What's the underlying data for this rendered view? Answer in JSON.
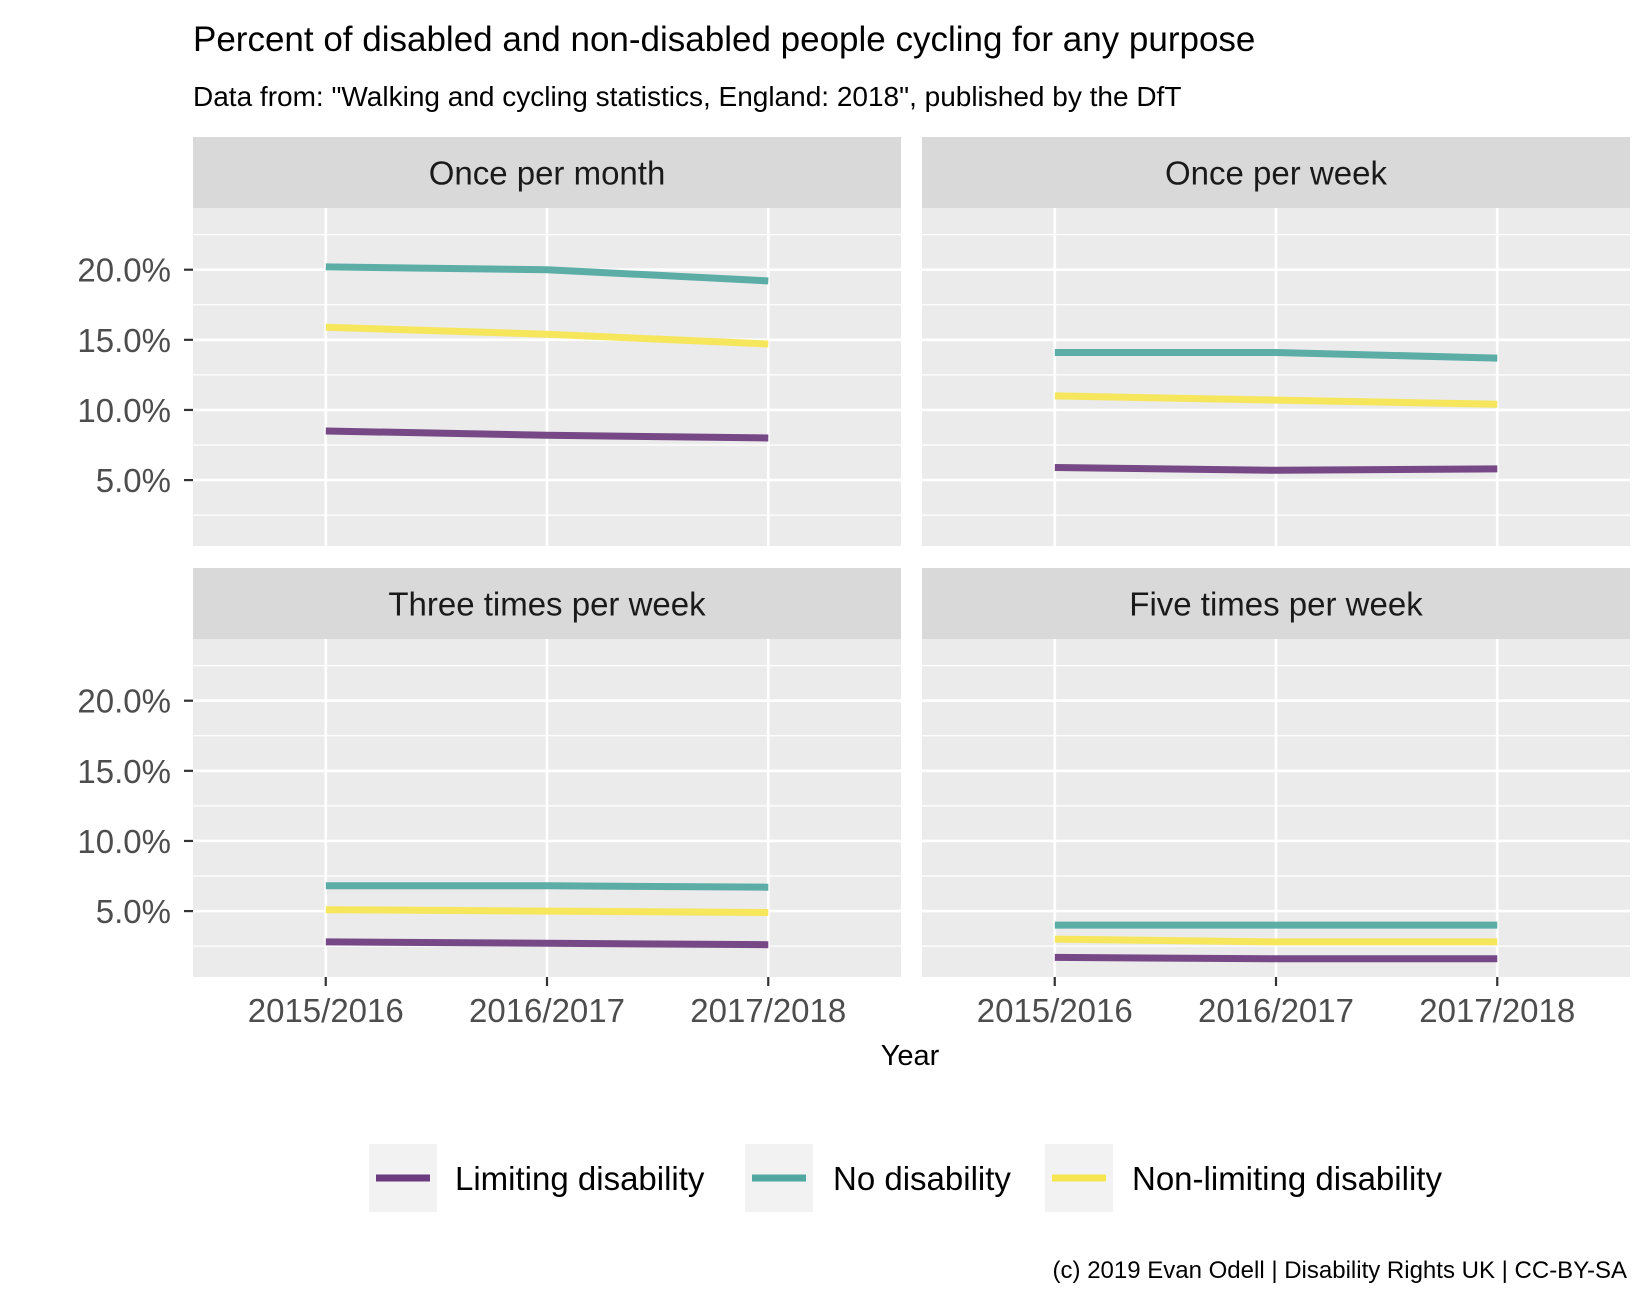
{
  "chart_data": {
    "type": "line",
    "title": "Percent of disabled and non-disabled people cycling for any purpose",
    "subtitle": "Data from: \"Walking and cycling statistics, England: 2018\", published by the DfT",
    "caption": "(c) 2019 Evan Odell | Disability Rights UK | CC-BY-SA",
    "xlabel": "Year",
    "ylabel": "",
    "x": [
      "2015/2016",
      "2016/2017",
      "2017/2018"
    ],
    "ylim": [
      0.3,
      24.4
    ],
    "yticks": [
      5,
      10,
      15,
      20
    ],
    "ytick_labels": [
      "5.0%",
      "10.0%",
      "15.0%",
      "20.0%"
    ],
    "grid": true,
    "legend_position": "bottom",
    "series_colors": {
      "Limiting disability": "#6b3b7d",
      "No disability": "#4fa7a0",
      "Non-limiting disability": "#f6e54f"
    },
    "panels": [
      {
        "label": "Once per month",
        "series": [
          {
            "name": "Limiting disability",
            "values": [
              8.5,
              8.2,
              8.0
            ]
          },
          {
            "name": "No disability",
            "values": [
              20.2,
              20.0,
              19.2
            ]
          },
          {
            "name": "Non-limiting disability",
            "values": [
              15.9,
              15.4,
              14.7
            ]
          }
        ]
      },
      {
        "label": "Once per week",
        "series": [
          {
            "name": "Limiting disability",
            "values": [
              5.9,
              5.7,
              5.8
            ]
          },
          {
            "name": "No disability",
            "values": [
              14.1,
              14.1,
              13.7
            ]
          },
          {
            "name": "Non-limiting disability",
            "values": [
              11.0,
              10.7,
              10.4
            ]
          }
        ]
      },
      {
        "label": "Three times per week",
        "series": [
          {
            "name": "Limiting disability",
            "values": [
              2.8,
              2.7,
              2.6
            ]
          },
          {
            "name": "No disability",
            "values": [
              6.8,
              6.8,
              6.7
            ]
          },
          {
            "name": "Non-limiting disability",
            "values": [
              5.1,
              5.0,
              4.9
            ]
          }
        ]
      },
      {
        "label": "Five times per week",
        "series": [
          {
            "name": "Limiting disability",
            "values": [
              1.7,
              1.6,
              1.6
            ]
          },
          {
            "name": "No disability",
            "values": [
              4.0,
              4.0,
              4.0
            ]
          },
          {
            "name": "Non-limiting disability",
            "values": [
              3.0,
              2.8,
              2.8
            ]
          }
        ]
      }
    ],
    "legend": [
      "Limiting disability",
      "No disability",
      "Non-limiting disability"
    ]
  }
}
